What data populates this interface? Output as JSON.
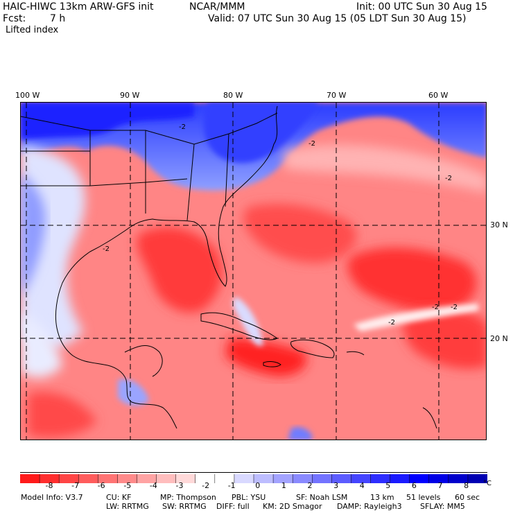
{
  "header": {
    "model": "HAIC-HIWC 13km ARW-GFS init",
    "org": "NCAR/MMM",
    "init": "Init: 00 UTC Sun 30 Aug 15",
    "fcst_label": "Fcst:",
    "fcst_value": "7 h",
    "valid": "Valid: 07 UTC Sun 30 Aug 15 (05 LDT Sun 30 Aug 15)",
    "field": "Lifted index"
  },
  "map": {
    "lon_labels": [
      "100 W",
      "90 W",
      "80 W",
      "70 W",
      "60 W"
    ],
    "lat_labels": [
      "30 N",
      "20 N"
    ],
    "contour_label": "-2"
  },
  "colorbar": {
    "ticks": [
      "-8",
      "-7",
      "-6",
      "-5",
      "-4",
      "-3",
      "-2",
      "-1",
      "0",
      "1",
      "2",
      "3",
      "4",
      "5",
      "6",
      "7",
      "8"
    ],
    "unit": "°C",
    "colors": [
      "#ff1a1a",
      "#ff2e2e",
      "#ff4545",
      "#ff5c5c",
      "#ff7373",
      "#ff8a8a",
      "#ffa3a3",
      "#ffbdbd",
      "#ffd9d9",
      "#ffffff",
      "#ffffff",
      "#d9d9ff",
      "#bdbdff",
      "#a3a3ff",
      "#8a8aff",
      "#7373ff",
      "#5c5cff",
      "#4545ff",
      "#2e2eff",
      "#1a1aff",
      "#0000ff",
      "#0000e6",
      "#0000cc",
      "#0000b3"
    ]
  },
  "footer": {
    "line1": {
      "model_info": "Model Info: V3.7",
      "cu": "CU: KF",
      "mp": "MP: Thompson",
      "pbl": "PBL: YSU",
      "sf": "SF: Noah LSM",
      "res": "13 km",
      "levels": "51 levels",
      "dt": "60 sec"
    },
    "line2": {
      "lw": "LW: RRTMG",
      "sw": "SW: RRTMG",
      "diff": "DIFF: full",
      "km": "KM: 2D Smagor",
      "damp": "DAMP: Rayleigh3",
      "sflay": "SFLAY: MM5"
    }
  }
}
